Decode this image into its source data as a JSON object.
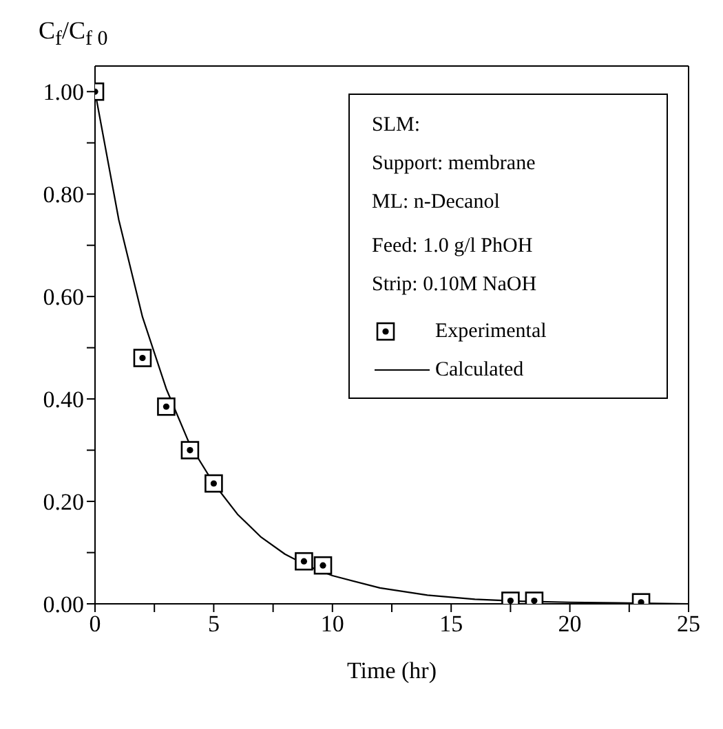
{
  "chart_data": {
    "type": "scatter",
    "xlabel": "Time (hr)",
    "ylabel": "C$_{f}$/C$_{f 0}$",
    "annotations": [
      "SLM:",
      "Support: membrane",
      "ML: n-Decanol",
      "Feed: 1.0 g/l PhOH",
      "Strip: 0.10M NaOH"
    ],
    "series": [
      {
        "name": "Experimental",
        "marker": "square",
        "color": "#000000",
        "x": [
          0,
          2,
          3,
          4,
          5,
          8.8,
          9.6,
          17.5,
          18.5,
          23
        ],
        "values": [
          1.0,
          0.48,
          0.385,
          0.3,
          0.235,
          0.083,
          0.075,
          0.006,
          0.006,
          0.003
        ]
      },
      {
        "name": "Calculated",
        "type": "line",
        "marker": "none",
        "line_style": "solid",
        "color": "#000000",
        "x": [
          0,
          1,
          2,
          3,
          4,
          5,
          6,
          7,
          8,
          9,
          10,
          12,
          14,
          16,
          18,
          20,
          22,
          25
        ],
        "values": [
          1.0,
          0.75,
          0.56,
          0.42,
          0.31,
          0.235,
          0.175,
          0.13,
          0.097,
          0.073,
          0.055,
          0.031,
          0.017,
          0.009,
          0.005,
          0.003,
          0.002,
          0.0
        ]
      }
    ],
    "xlim": [
      0,
      25
    ],
    "xticks": [
      0,
      {
        "value": 2.5,
        "label": null
      },
      5,
      {
        "value": 7.5,
        "label": null
      },
      10,
      {
        "value": 12.5,
        "label": null
      },
      15,
      {
        "value": 17.5,
        "label": null
      },
      20,
      {
        "value": 22.5,
        "label": null
      },
      25
    ],
    "ylim": [
      0,
      1.05
    ],
    "yticks": [
      {
        "value": 0,
        "label": "0.00"
      },
      {
        "value": 0.1,
        "label": null
      },
      {
        "value": 0.2,
        "label": "0.20"
      },
      {
        "value": 0.3,
        "label": null
      },
      {
        "value": 0.4,
        "label": "0.40"
      },
      {
        "value": 0.5,
        "label": null
      },
      {
        "value": 0.6,
        "label": "0.60"
      },
      {
        "value": 0.7,
        "label": null
      },
      {
        "value": 0.8,
        "label": "0.80"
      },
      {
        "value": 0.9,
        "label": null
      },
      {
        "value": 1,
        "label": "1.00"
      }
    ],
    "legend": "right"
  }
}
